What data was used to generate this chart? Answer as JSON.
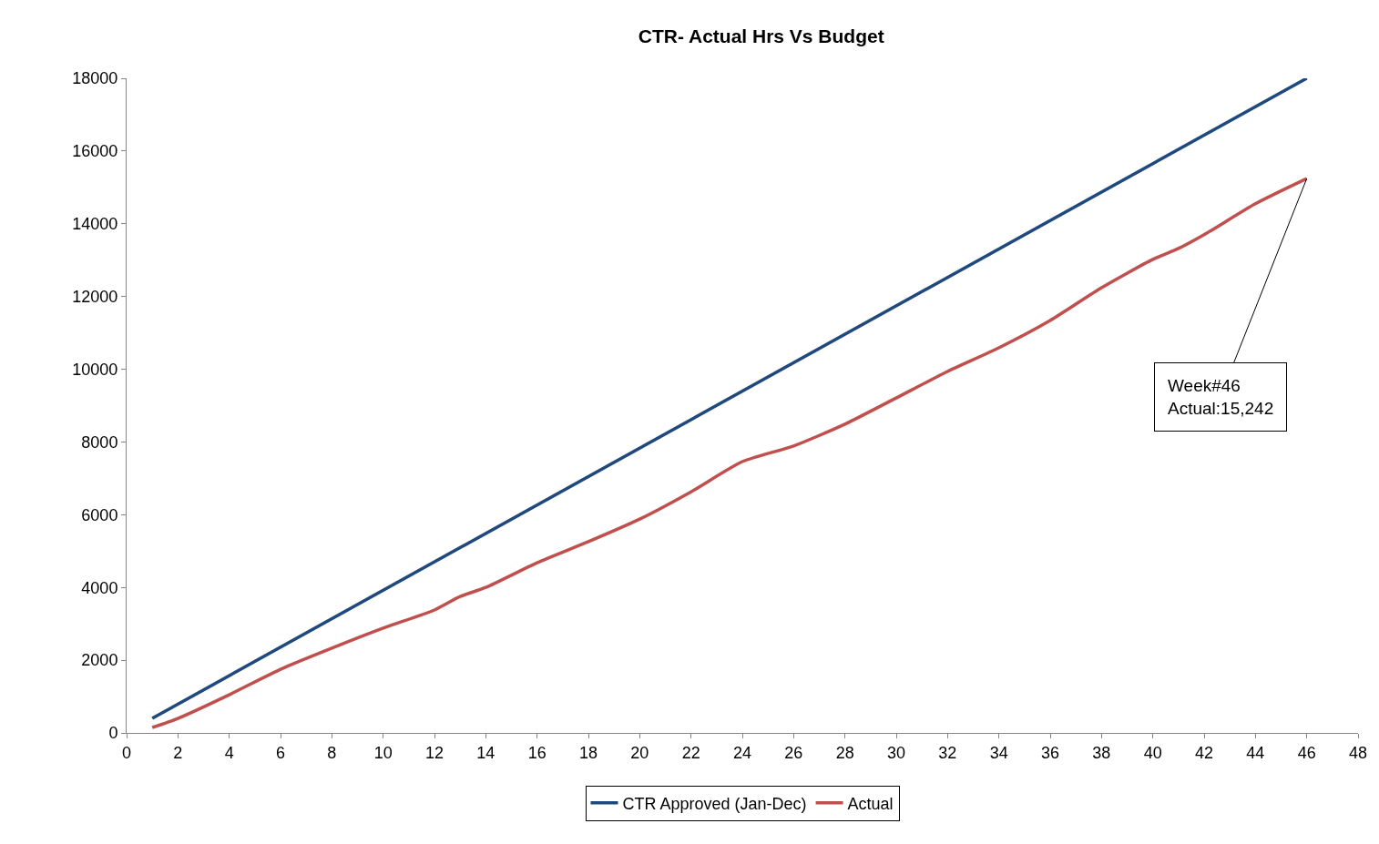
{
  "chart_data": {
    "type": "line",
    "title": "CTR- Actual Hrs Vs Budget",
    "xlim": [
      0,
      48
    ],
    "xticks": [
      0,
      2,
      4,
      6,
      8,
      10,
      12,
      14,
      16,
      18,
      20,
      22,
      24,
      26,
      28,
      30,
      32,
      34,
      36,
      38,
      40,
      42,
      44,
      46,
      48
    ],
    "ylim": [
      0,
      18000
    ],
    "yticks": [
      0,
      2000,
      4000,
      6000,
      8000,
      10000,
      12000,
      14000,
      16000,
      18000
    ],
    "grid": false,
    "legend": "bottom",
    "marker": "none",
    "line_style": "solid",
    "series": [
      {
        "name": "CTR Approved (Jan-Dec)",
        "color": "#1f497d",
        "x": [
          1,
          46
        ],
        "values": [
          400,
          18000
        ]
      },
      {
        "name": "Actual",
        "color": "#c0504d",
        "x": [
          1,
          2,
          4,
          6,
          8,
          10,
          12,
          13,
          14,
          16,
          18,
          20,
          22,
          24,
          26,
          28,
          30,
          32,
          34,
          36,
          38,
          40,
          41,
          42,
          44,
          46
        ],
        "values": [
          150,
          400,
          1050,
          1750,
          2330,
          2880,
          3380,
          3750,
          4000,
          4680,
          5260,
          5880,
          6630,
          7460,
          7890,
          8490,
          9210,
          9940,
          10590,
          11340,
          12240,
          13020,
          13320,
          13700,
          14550,
          15242
        ]
      }
    ],
    "annotations": [
      {
        "text": "Week#46\nActual:15,242",
        "x": 46,
        "y": 15242
      }
    ]
  }
}
